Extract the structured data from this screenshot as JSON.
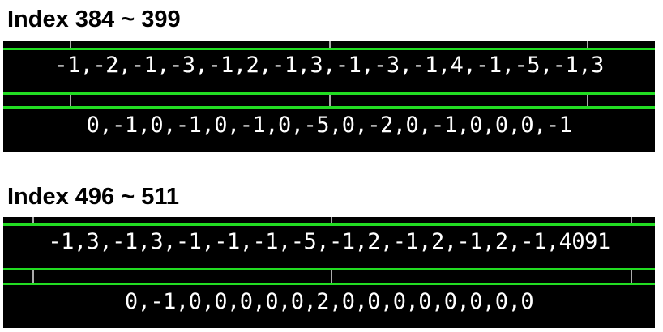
{
  "colors": {
    "panel_bg": "#000000",
    "grid_line": "#22dd22",
    "tick": "#aaaaaa",
    "value_text": "#ffffff"
  },
  "sections": [
    {
      "title": "Index 384 ~ 399",
      "row_top": "-1,-2,-1,-3,-1,2,-1,3,-1,-3,-1,4,-1,-5,-1,3",
      "row_bottom": "0,-1,0,-1,0,-1,0,-5,0,-2,0,-1,0,0,0,-1"
    },
    {
      "title": "Index 496 ~ 511",
      "row_top": "-1,3,-1,3,-1,-1,-1,-5,-1,2,-1,2,-1,2,-1,4091",
      "row_bottom": "0,-1,0,0,0,0,0,2,0,0,0,0,0,0,0,0"
    }
  ]
}
